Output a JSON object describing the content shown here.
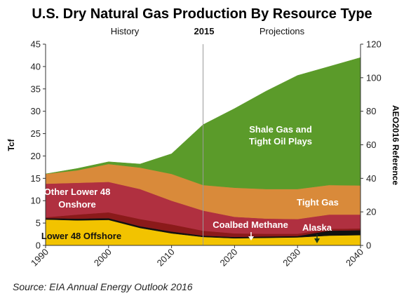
{
  "chart_data": {
    "type": "area",
    "title": "U.S. Dry Natural Gas Production By Resource Type",
    "ylabel": "Tcf",
    "y2label": "AEO2016 Reference",
    "section_history": "History",
    "section_year": "2015",
    "section_projections": "Projections",
    "source": "Source: EIA Annual Energy Outlook 2016",
    "xlim": [
      1990,
      2040
    ],
    "ylim": [
      0,
      45
    ],
    "y2lim": [
      0,
      120
    ],
    "divider_x": 2015,
    "x_ticks": [
      "1990",
      "2000",
      "2010",
      "2020",
      "2030",
      "2040"
    ],
    "y_ticks": [
      "0",
      "5",
      "10",
      "15",
      "20",
      "25",
      "30",
      "35",
      "40",
      "45"
    ],
    "y2_ticks": [
      "0",
      "20",
      "40",
      "60",
      "80",
      "100",
      "120"
    ],
    "x": [
      1990,
      1995,
      2000,
      2005,
      2010,
      2015,
      2020,
      2025,
      2030,
      2035,
      2040
    ],
    "series": [
      {
        "name": "Lower 48 Offshore",
        "color": "#f2c300",
        "values": [
          5.8,
          5.6,
          5.7,
          3.9,
          2.7,
          1.9,
          1.6,
          1.7,
          1.8,
          2.2,
          2.3
        ]
      },
      {
        "name": "Alaska",
        "color": "#111111",
        "values": [
          0.3,
          0.4,
          0.4,
          0.4,
          0.4,
          0.3,
          0.3,
          0.3,
          0.3,
          1.1,
          1.1
        ]
      },
      {
        "name": "Coalbed Methane",
        "color": "#8b1a1a",
        "values": [
          0.2,
          0.9,
          1.3,
          1.6,
          1.6,
          1.1,
          0.8,
          0.6,
          0.5,
          0.4,
          0.4
        ]
      },
      {
        "name": "Other Lower 48 Onshore",
        "color": "#b03040",
        "values": [
          7.5,
          7.1,
          6.8,
          6.7,
          5.3,
          4.5,
          3.7,
          3.4,
          3.3,
          3.2,
          3.1
        ]
      },
      {
        "name": "Tight Gas",
        "color": "#d98a3a",
        "values": [
          2.2,
          2.8,
          4.0,
          4.8,
          6.0,
          5.7,
          6.5,
          6.6,
          6.7,
          6.6,
          6.5
        ]
      },
      {
        "name": "Shale Gas and Tight Oil Plays",
        "color": "#5b9b2a",
        "values": [
          0.0,
          0.4,
          0.5,
          0.8,
          4.5,
          13.5,
          17.7,
          21.9,
          25.4,
          26.5,
          28.6
        ]
      }
    ],
    "labels": {
      "shale_1": "Shale Gas and",
      "shale_2": "Tight Oil Plays",
      "tight": "Tight Gas",
      "other_1": "Other Lower 48",
      "other_2": "Onshore",
      "coalbed": "Coalbed Methane",
      "alaska": "Alaska",
      "offshore": "Lower 48 Offshore"
    },
    "grid": false,
    "legend": "inline"
  }
}
